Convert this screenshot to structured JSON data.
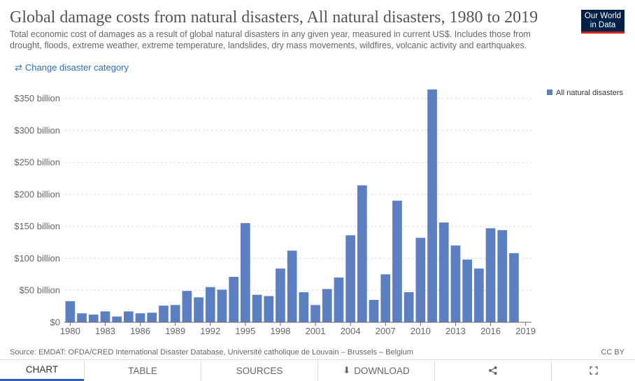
{
  "header": {
    "title": "Global damage costs from natural disasters, All natural disasters, 1980 to 2019",
    "subtitle": "Total economic cost of damages as a result of global natural disasters in any given year, measured in current US$. Includes those from drought, floods, extreme weather, extreme temperature, landslides, dry mass movements, wildfires, volcanic activity and earthquakes.",
    "logo_line1": "Our World",
    "logo_line2": "in Data",
    "change_link": "Change disaster category",
    "change_icon": "swap-arrows-icon"
  },
  "chart_data": {
    "type": "bar",
    "categories": [
      "1980",
      "1981",
      "1982",
      "1983",
      "1984",
      "1985",
      "1986",
      "1987",
      "1988",
      "1989",
      "1990",
      "1991",
      "1992",
      "1993",
      "1994",
      "1995",
      "1996",
      "1997",
      "1998",
      "1999",
      "2000",
      "2001",
      "2002",
      "2003",
      "2004",
      "2005",
      "2006",
      "2007",
      "2008",
      "2009",
      "2010",
      "2011",
      "2012",
      "2013",
      "2014",
      "2015",
      "2016",
      "2017",
      "2018",
      "2019"
    ],
    "series": [
      {
        "name": "All natural disasters",
        "values": [
          33,
          14,
          12,
          17,
          9,
          17,
          14,
          15,
          26,
          27,
          49,
          39,
          55,
          51,
          71,
          155,
          43,
          41,
          84,
          112,
          47,
          27,
          52,
          70,
          136,
          214,
          35,
          75,
          190,
          47,
          132,
          364,
          156,
          120,
          98,
          84,
          147,
          144,
          108,
          null
        ]
      }
    ],
    "x_tick_labels": [
      "1980",
      "1983",
      "1986",
      "1989",
      "1992",
      "1995",
      "1998",
      "2001",
      "2004",
      "2007",
      "2010",
      "2013",
      "2016",
      "2019"
    ],
    "y_ticks": [
      0,
      50,
      100,
      150,
      200,
      250,
      300,
      350
    ],
    "y_tick_labels": [
      "$0",
      "$50 billion",
      "$100 billion",
      "$150 billion",
      "$200 billion",
      "$250 billion",
      "$300 billion",
      "$350 billion"
    ],
    "ylim": [
      0,
      365
    ],
    "xlabel": "",
    "ylabel": "",
    "grid": true,
    "legend_position": "top-right",
    "colors": {
      "bar": "#5b7fc0",
      "grid": "#dddddd",
      "axis": "#666666"
    }
  },
  "footer": {
    "source": "Source: EMDAT: OFDA/CRED International Disaster Database, Université catholique de Louvain – Brussels – Belgium",
    "license": "CC BY"
  },
  "tabs": {
    "chart": "CHART",
    "table": "TABLE",
    "sources": "SOURCES",
    "download": "DOWNLOAD",
    "download_icon": "download-icon",
    "share_icon": "share-icon",
    "fullscreen_icon": "fullscreen-icon"
  }
}
